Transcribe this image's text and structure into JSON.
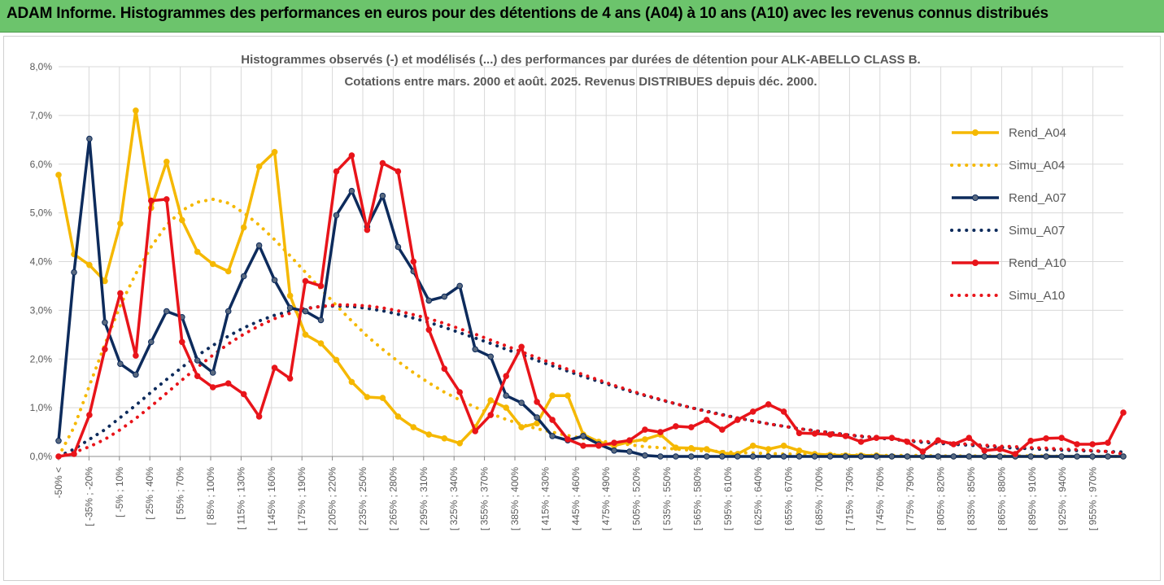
{
  "banner": {
    "title": "ADAM Informe. Histogrammes des performances en euros pour des détentions de 4 ans (A04) à 10 ans (A10) avec les revenus connus distribués"
  },
  "colors": {
    "banner_bg": "#6cc46c",
    "A04": "#f5b800",
    "A07": "#0d2b5c",
    "A10": "#e8141a",
    "grid": "#d9d9d9"
  },
  "chart_data": {
    "type": "line",
    "title": "Histogrammes observés (-) et modélisés (...) des performances par durées de détention pour ALK-ABELLO CLASS B.",
    "subtitle": "Cotations entre mars. 2000 et août. 2025. Revenus DISTRIBUES depuis déc. 2000.",
    "ylim": [
      0,
      8
    ],
    "y_ticks": [
      "0,0%",
      "1,0%",
      "2,0%",
      "3,0%",
      "4,0%",
      "5,0%",
      "6,0%",
      "7,0%",
      "8,0%"
    ],
    "grid": true,
    "legend_position": "right",
    "x_labels": [
      "-50% <",
      "[ -35% ; -20%",
      "[ -5% ; 10%",
      "[ 25% ; 40%",
      "[ 55% ; 70%",
      "[ 85% ; 100%",
      "[ 115% ; 130%",
      "[ 145% ; 160%",
      "[ 175% ; 190%",
      "[ 205% ; 220%",
      "[ 235% ; 250%",
      "[ 265% ; 280%",
      "[ 295% ; 310%",
      "[ 325% ; 340%",
      "[ 355% ; 370%",
      "[ 385% ; 400%",
      "[ 415% ; 430%",
      "[ 445% ; 460%",
      "[ 475% ; 490%",
      "[ 505% ; 520%",
      "[ 535% ; 550%",
      "[ 565% ; 580%",
      "[ 595% ; 610%",
      "[ 625% ; 640%",
      "[ 655% ; 670%",
      "[ 685% ; 700%",
      "[ 715% ; 730%",
      "[ 745% ; 760%",
      "[ 775% ; 790%",
      "[ 805% ; 820%",
      "[ 835% ; 850%",
      "[ 865% ; 880%",
      "[ 895% ; 910%",
      "[ 925% ; 940%",
      "[ 955% ; 970%"
    ],
    "series": [
      {
        "name": "Rend_A04",
        "style": "solid",
        "color": "#f5b800",
        "values": [
          5.78,
          4.15,
          3.93,
          3.6,
          4.78,
          7.1,
          5.1,
          6.05,
          4.85,
          4.2,
          3.95,
          3.8,
          4.7,
          5.95,
          6.25,
          3.3,
          2.5,
          2.32,
          1.98,
          1.53,
          1.22,
          1.2,
          0.82,
          0.6,
          0.45,
          0.37,
          0.27,
          0.6,
          1.15,
          1.0,
          0.6,
          0.68,
          1.25,
          1.25,
          0.45,
          0.3,
          0.22,
          0.3,
          0.35,
          0.45,
          0.18,
          0.17,
          0.15,
          0.07,
          0.05,
          0.22,
          0.15,
          0.22,
          0.12,
          0.05,
          0.03,
          0.02,
          0.02,
          0.02,
          0.0,
          0.0,
          0.0,
          0.0,
          0.0,
          0.0,
          0.0,
          0.0,
          0.0,
          0.0,
          0.0,
          0.0,
          0.0,
          0.0,
          0.0,
          0.0
        ]
      },
      {
        "name": "Simu_A04",
        "style": "dotted",
        "color": "#f5b800",
        "values": [
          0.0,
          0.6,
          1.45,
          2.3,
          3.1,
          3.75,
          4.3,
          4.75,
          5.05,
          5.22,
          5.28,
          5.2,
          5.0,
          4.75,
          4.45,
          4.12,
          3.78,
          3.44,
          3.1,
          2.78,
          2.47,
          2.2,
          1.95,
          1.72,
          1.51,
          1.32,
          1.16,
          1.01,
          0.88,
          0.76,
          0.66,
          0.57,
          0.5,
          0.43,
          0.37,
          0.32,
          0.28,
          0.24,
          0.2,
          0.18,
          0.15,
          0.13,
          0.11,
          0.1,
          0.08,
          0.07,
          0.06,
          0.05,
          0.05,
          0.04,
          0.04,
          0.03,
          0.03,
          0.02,
          0.02,
          0.02,
          0.02,
          0.01,
          0.01,
          0.01,
          0.01,
          0.01,
          0.01,
          0.01,
          0.01,
          0.0,
          0.0,
          0.0,
          0.0,
          0.0
        ]
      },
      {
        "name": "Rend_A07",
        "style": "solid",
        "color": "#0d2b5c",
        "values": [
          0.32,
          3.78,
          6.52,
          2.75,
          1.9,
          1.68,
          2.35,
          2.98,
          2.86,
          1.97,
          1.72,
          2.98,
          3.7,
          4.33,
          3.62,
          3.05,
          2.98,
          2.8,
          4.95,
          5.45,
          4.72,
          5.35,
          4.3,
          3.8,
          3.2,
          3.28,
          3.5,
          2.2,
          2.05,
          1.25,
          1.1,
          0.8,
          0.42,
          0.33,
          0.42,
          0.25,
          0.12,
          0.1,
          0.02,
          0.0,
          0.0,
          0.0,
          0.0,
          0.0,
          0.0,
          0.0,
          0.0,
          0.0,
          0.0,
          0.0,
          0.0,
          0.0,
          0.0,
          0.0,
          0.0,
          0.0,
          0.0,
          0.0,
          0.0,
          0.0,
          0.0,
          0.0,
          0.0,
          0.0,
          0.0,
          0.0,
          0.0,
          0.0,
          0.0,
          0.0
        ]
      },
      {
        "name": "Simu_A07",
        "style": "dotted",
        "color": "#0d2b5c",
        "values": [
          0.0,
          0.15,
          0.35,
          0.55,
          0.8,
          1.05,
          1.32,
          1.58,
          1.83,
          2.07,
          2.28,
          2.47,
          2.64,
          2.78,
          2.9,
          2.98,
          3.04,
          3.08,
          3.09,
          3.08,
          3.04,
          2.99,
          2.92,
          2.84,
          2.75,
          2.65,
          2.54,
          2.43,
          2.32,
          2.2,
          2.09,
          1.97,
          1.86,
          1.75,
          1.64,
          1.54,
          1.44,
          1.34,
          1.25,
          1.16,
          1.08,
          1.0,
          0.93,
          0.86,
          0.79,
          0.73,
          0.67,
          0.62,
          0.57,
          0.53,
          0.49,
          0.45,
          0.41,
          0.38,
          0.35,
          0.32,
          0.29,
          0.27,
          0.25,
          0.23,
          0.21,
          0.19,
          0.17,
          0.16,
          0.14,
          0.13,
          0.12,
          0.11,
          0.1,
          0.09
        ]
      },
      {
        "name": "Rend_A10",
        "style": "solid",
        "color": "#e8141a",
        "values": [
          0.0,
          0.05,
          0.85,
          2.2,
          3.35,
          2.07,
          5.25,
          5.28,
          2.35,
          1.65,
          1.42,
          1.5,
          1.28,
          0.82,
          1.82,
          1.6,
          3.6,
          3.5,
          5.85,
          6.18,
          4.65,
          6.02,
          5.85,
          4.0,
          2.6,
          1.8,
          1.32,
          0.52,
          0.85,
          1.65,
          2.25,
          1.12,
          0.75,
          0.35,
          0.22,
          0.22,
          0.28,
          0.33,
          0.55,
          0.5,
          0.62,
          0.6,
          0.75,
          0.55,
          0.75,
          0.92,
          1.07,
          0.92,
          0.48,
          0.47,
          0.45,
          0.42,
          0.3,
          0.38,
          0.38,
          0.3,
          0.1,
          0.33,
          0.25,
          0.38,
          0.12,
          0.15,
          0.05,
          0.32,
          0.37,
          0.38,
          0.25,
          0.25,
          0.28,
          0.9
        ]
      },
      {
        "name": "Simu_A10",
        "style": "dotted",
        "color": "#e8141a",
        "values": [
          0.0,
          0.08,
          0.2,
          0.35,
          0.55,
          0.78,
          1.03,
          1.3,
          1.57,
          1.83,
          2.08,
          2.31,
          2.51,
          2.68,
          2.83,
          2.94,
          3.03,
          3.08,
          3.11,
          3.11,
          3.09,
          3.05,
          2.99,
          2.91,
          2.83,
          2.73,
          2.62,
          2.51,
          2.39,
          2.27,
          2.15,
          2.03,
          1.91,
          1.79,
          1.68,
          1.57,
          1.46,
          1.36,
          1.26,
          1.17,
          1.08,
          1.0,
          0.92,
          0.85,
          0.79,
          0.73,
          0.67,
          0.62,
          0.57,
          0.53,
          0.49,
          0.45,
          0.42,
          0.39,
          0.36,
          0.33,
          0.31,
          0.29,
          0.27,
          0.25,
          0.23,
          0.21,
          0.2,
          0.18,
          0.17,
          0.15,
          0.14,
          0.12,
          0.1,
          0.05
        ]
      }
    ]
  }
}
